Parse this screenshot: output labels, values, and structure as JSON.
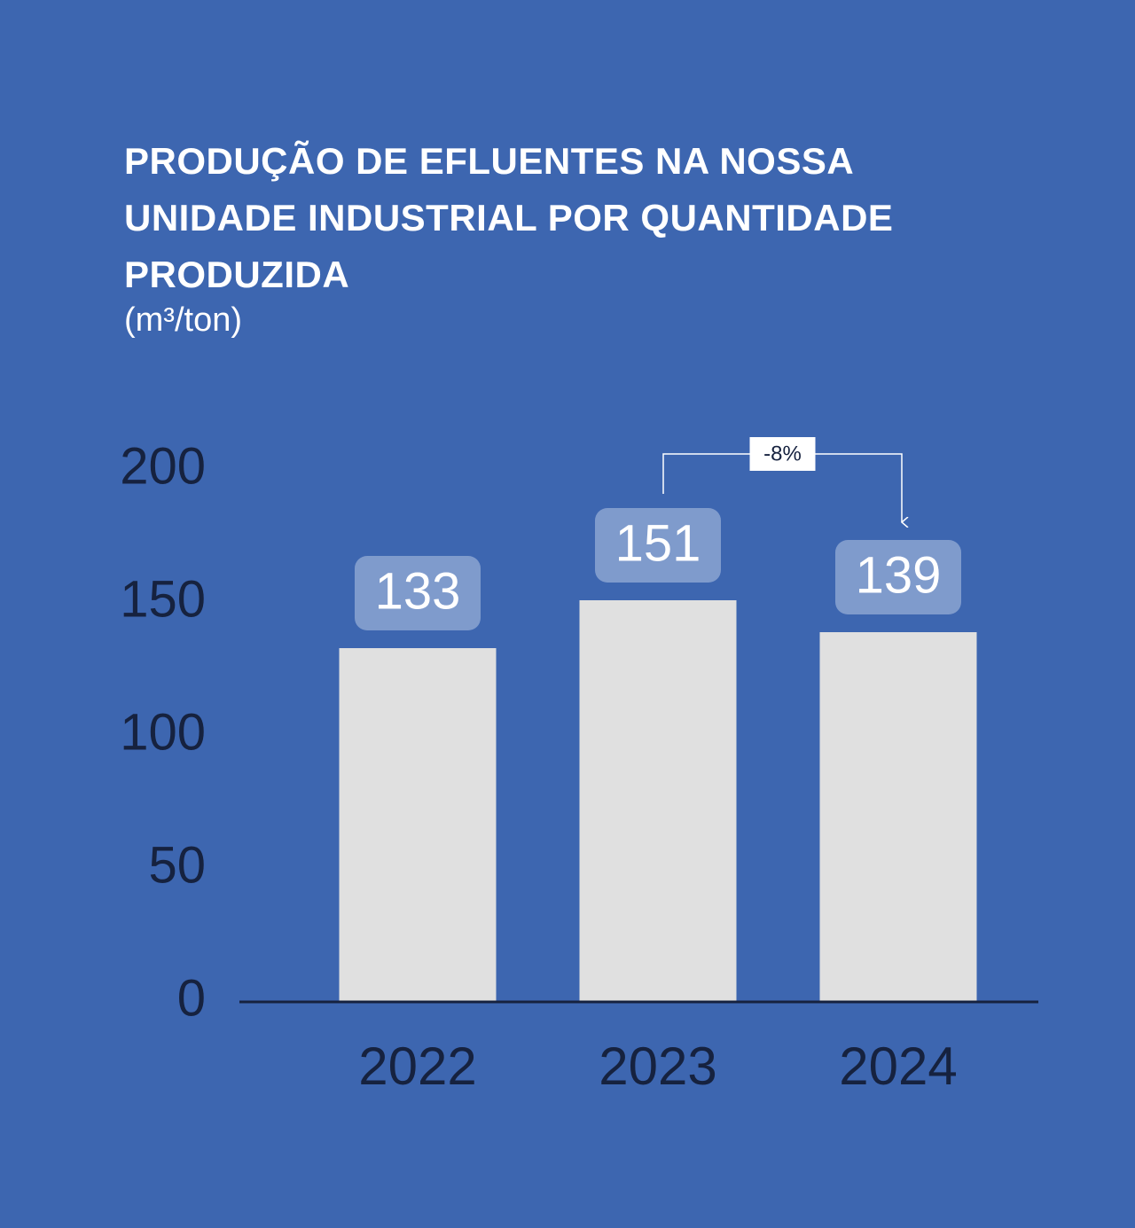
{
  "chart_data": {
    "type": "bar",
    "title": "PRODUÇÃO DE EFLUENTES NA NOSSA UNIDADE INDUSTRIAL POR QUANTIDADE PRODUZIDA",
    "subtitle": "(m³/ton)",
    "categories": [
      "2022",
      "2023",
      "2024"
    ],
    "values": [
      133,
      151,
      139
    ],
    "color": "#e0e0e0",
    "ylim": [
      0,
      200
    ],
    "yticks": [
      0,
      50,
      100,
      150,
      200
    ],
    "grid": false,
    "annotation": "-8%"
  }
}
